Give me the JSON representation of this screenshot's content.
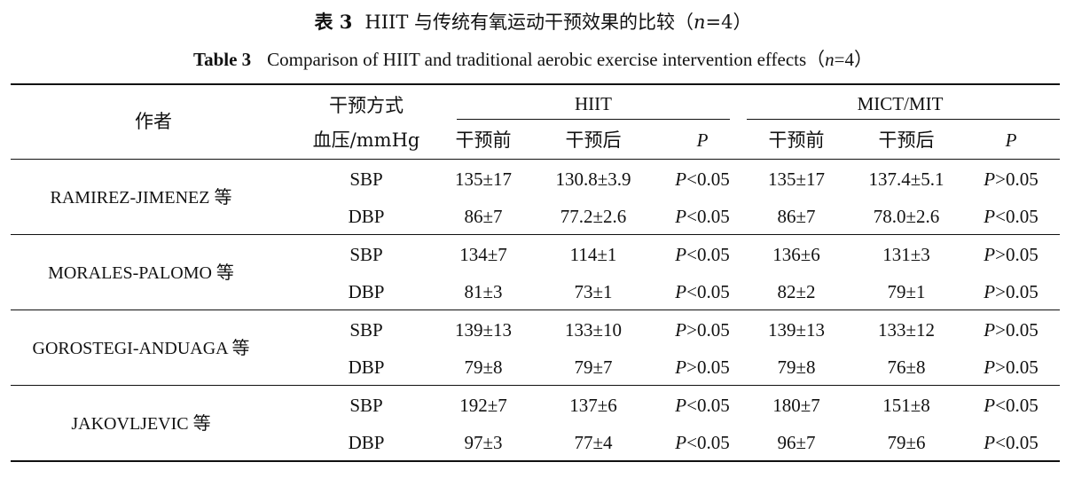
{
  "caption_cn": {
    "label": "表 3",
    "text_before": "HIIT 与传统有氧运动干预效果的比较（",
    "n_var": "n",
    "text_after": "=4）"
  },
  "caption_en": {
    "label": "Table 3",
    "text_before": "Comparison of HIIT and traditional aerobic exercise intervention effects（",
    "n_var": "n",
    "text_after": "=4）"
  },
  "header": {
    "author": "作者",
    "intervention": "干预方式",
    "bp_unit": "血压/mmHg",
    "hiit": "HIIT",
    "mict": "MICT/MIT",
    "pre": "干预前",
    "post": "干预后",
    "p": "P"
  },
  "studies": [
    {
      "author": "RAMIREZ-JIMENEZ 等",
      "rows": [
        {
          "bp": "SBP",
          "hiit_pre": "135±17",
          "hiit_post": "130.8±3.9",
          "hiit_p_sym": "<0.05",
          "mict_pre": "135±17",
          "mict_post": "137.4±5.1",
          "mict_p_sym": ">0.05"
        },
        {
          "bp": "DBP",
          "hiit_pre": "86±7",
          "hiit_post": "77.2±2.6",
          "hiit_p_sym": "<0.05",
          "mict_pre": "86±7",
          "mict_post": "78.0±2.6",
          "mict_p_sym": "<0.05"
        }
      ]
    },
    {
      "author": "MORALES-PALOMO 等",
      "rows": [
        {
          "bp": "SBP",
          "hiit_pre": "134±7",
          "hiit_post": "114±1",
          "hiit_p_sym": "<0.05",
          "mict_pre": "136±6",
          "mict_post": "131±3",
          "mict_p_sym": ">0.05"
        },
        {
          "bp": "DBP",
          "hiit_pre": "81±3",
          "hiit_post": "73±1",
          "hiit_p_sym": "<0.05",
          "mict_pre": "82±2",
          "mict_post": "79±1",
          "mict_p_sym": ">0.05"
        }
      ]
    },
    {
      "author": "GOROSTEGI-ANDUAGA 等",
      "rows": [
        {
          "bp": "SBP",
          "hiit_pre": "139±13",
          "hiit_post": "133±10",
          "hiit_p_sym": ">0.05",
          "mict_pre": "139±13",
          "mict_post": "133±12",
          "mict_p_sym": ">0.05"
        },
        {
          "bp": "DBP",
          "hiit_pre": "79±8",
          "hiit_post": "79±7",
          "hiit_p_sym": ">0.05",
          "mict_pre": "79±8",
          "mict_post": "76±8",
          "mict_p_sym": ">0.05"
        }
      ]
    },
    {
      "author": "JAKOVLJEVIC 等",
      "rows": [
        {
          "bp": "SBP",
          "hiit_pre": "192±7",
          "hiit_post": "137±6",
          "hiit_p_sym": "<0.05",
          "mict_pre": "180±7",
          "mict_post": "151±8",
          "mict_p_sym": "<0.05"
        },
        {
          "bp": "DBP",
          "hiit_pre": "97±3",
          "hiit_post": "77±4",
          "hiit_p_sym": "<0.05",
          "mict_pre": "96±7",
          "mict_post": "79±6",
          "mict_p_sym": "<0.05"
        }
      ]
    }
  ]
}
